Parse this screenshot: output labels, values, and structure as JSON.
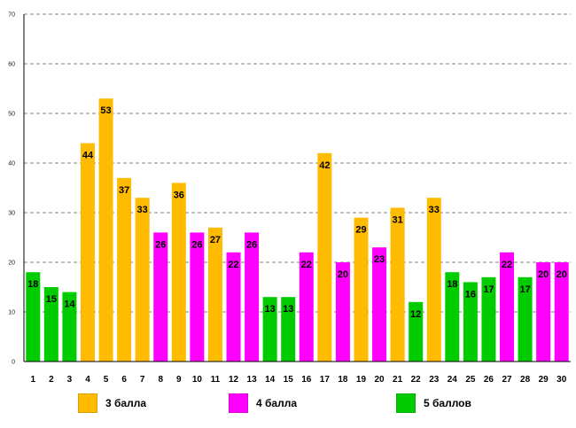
{
  "chart_data": {
    "type": "bar",
    "title": "",
    "xlabel": "",
    "ylabel": "",
    "ylim": [
      0,
      70
    ],
    "yticks": [
      0,
      10,
      20,
      30,
      40,
      50,
      60,
      70
    ],
    "grid": true,
    "legend_position": "bottom",
    "categories": [
      "1",
      "2",
      "3",
      "4",
      "5",
      "6",
      "7",
      "8",
      "9",
      "10",
      "11",
      "12",
      "13",
      "14",
      "15",
      "16",
      "17",
      "18",
      "19",
      "20",
      "21",
      "22",
      "23",
      "24",
      "25",
      "26",
      "27",
      "28",
      "29",
      "30"
    ],
    "values": [
      18,
      15,
      14,
      44,
      53,
      37,
      33,
      26,
      36,
      26,
      27,
      22,
      26,
      13,
      13,
      22,
      42,
      20,
      29,
      23,
      31,
      12,
      33,
      18,
      16,
      17,
      22,
      17,
      20,
      20
    ],
    "series_index": [
      2,
      2,
      2,
      0,
      0,
      0,
      0,
      1,
      0,
      1,
      0,
      1,
      1,
      2,
      2,
      1,
      0,
      1,
      0,
      1,
      0,
      2,
      0,
      2,
      2,
      2,
      1,
      2,
      1,
      1
    ],
    "series": [
      {
        "name": "3 балла",
        "color": "#FFBB00"
      },
      {
        "name": "4 балла",
        "color": "#FF00FF"
      },
      {
        "name": "5 баллов",
        "color": "#00CC00"
      }
    ]
  }
}
